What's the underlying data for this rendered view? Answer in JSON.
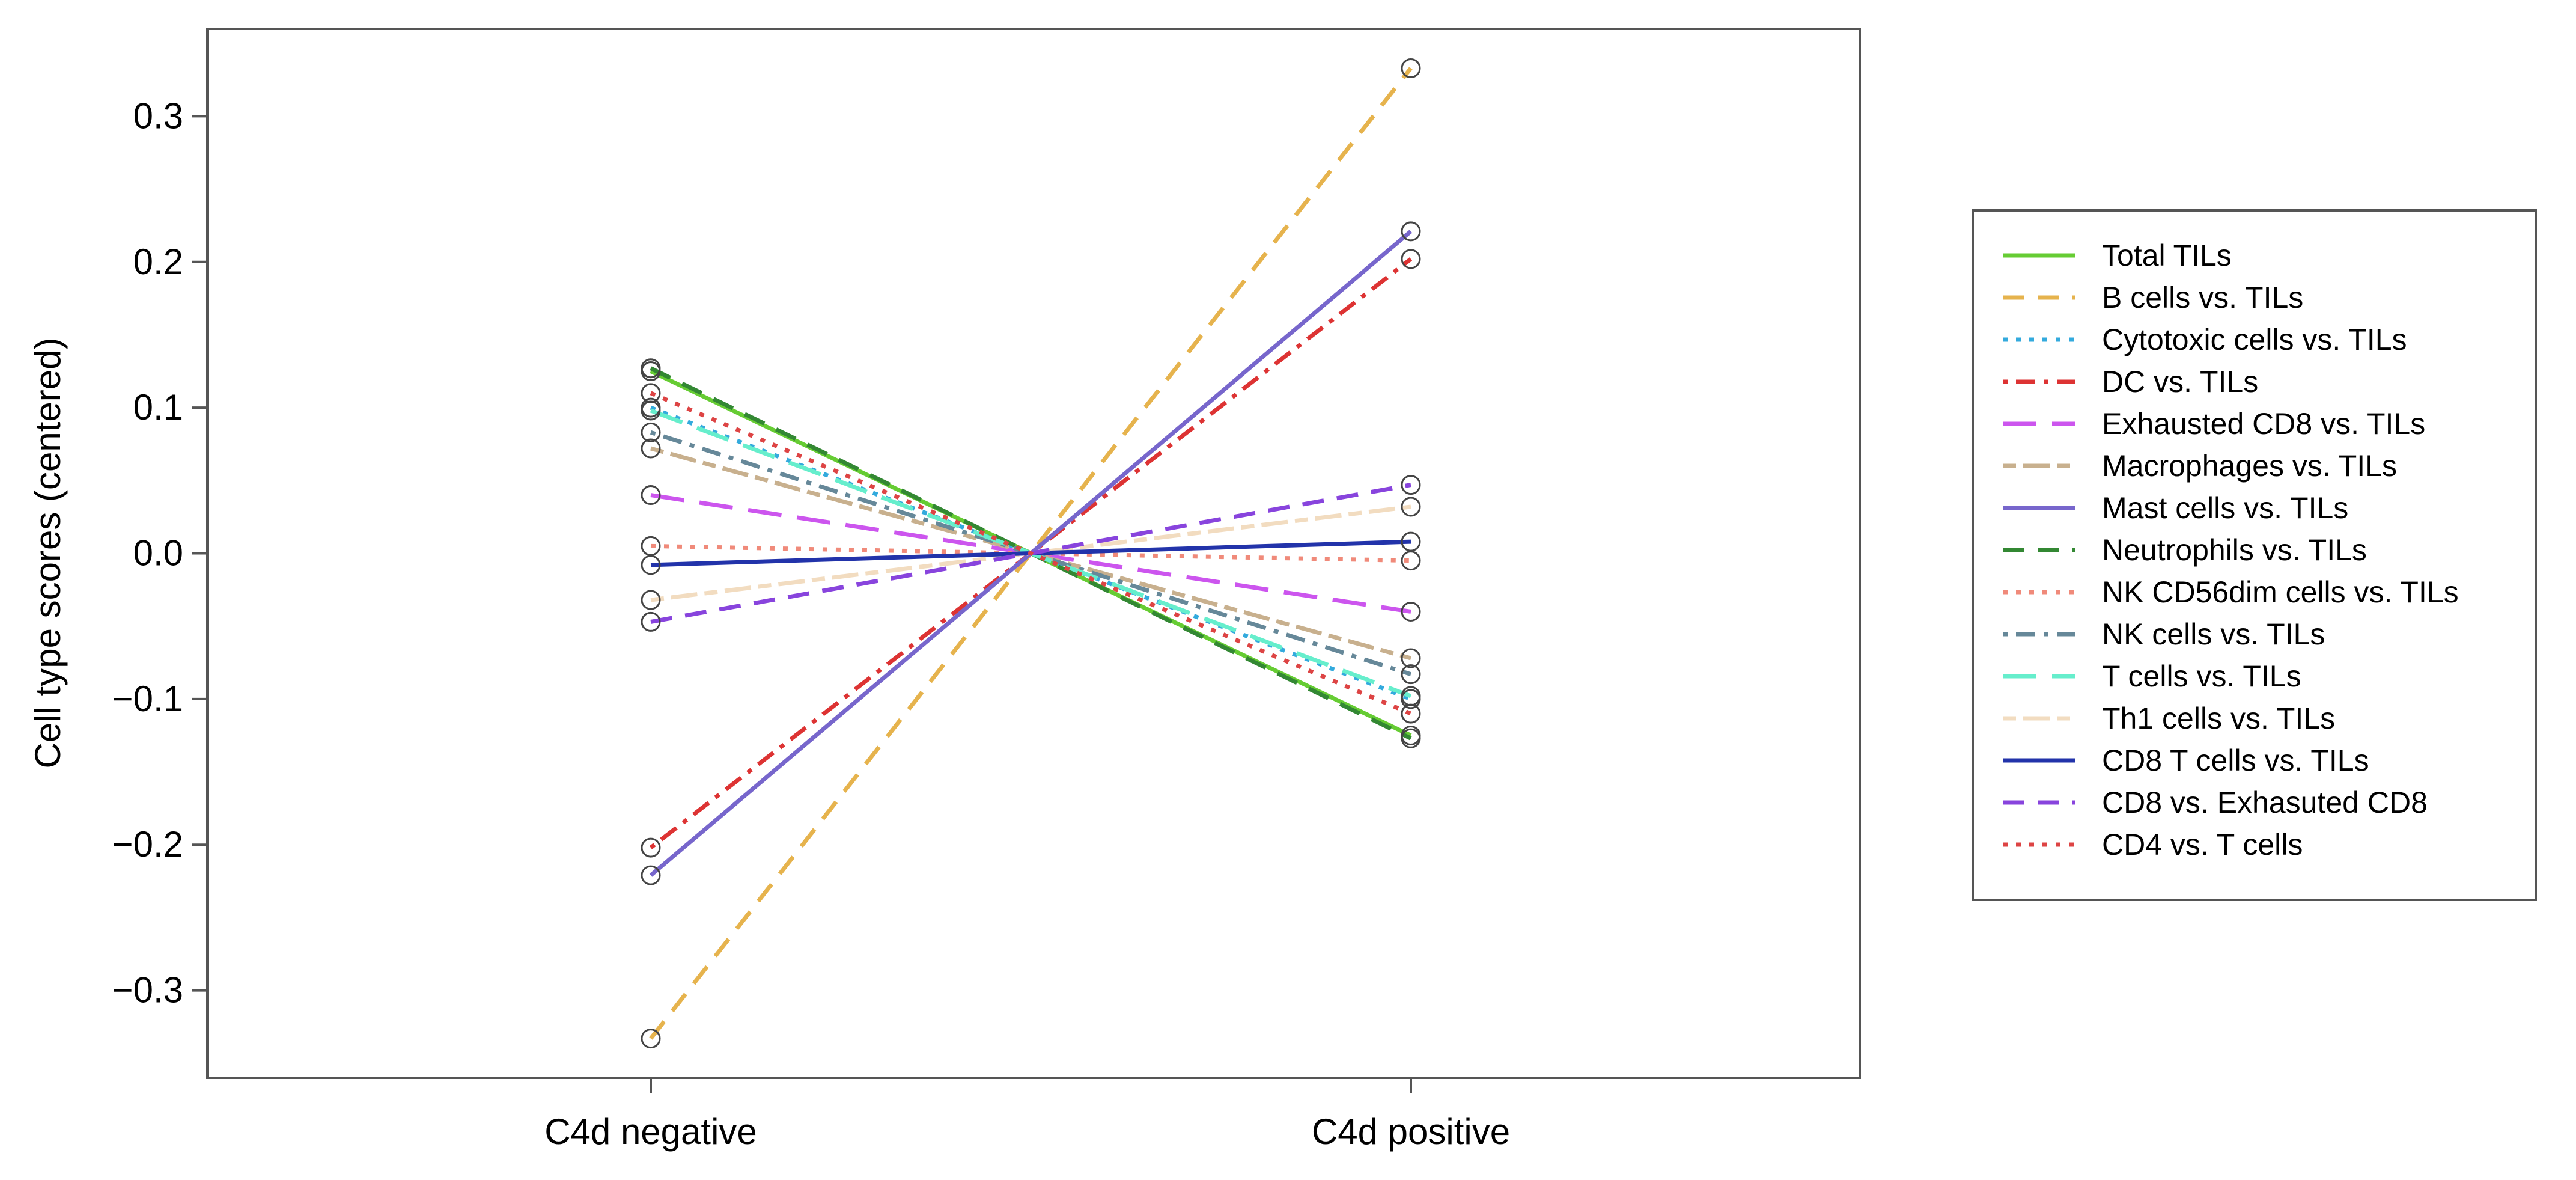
{
  "chart_data": {
    "type": "line",
    "title": "",
    "xlabel": "",
    "ylabel": "Cell type scores (centered)",
    "categories": [
      "C4d negative",
      "C4d positive"
    ],
    "ylim": [
      -0.36,
      0.36
    ],
    "yticks": [
      {
        "value": 0.3,
        "label": "0.3"
      },
      {
        "value": 0.2,
        "label": "0.2"
      },
      {
        "value": 0.1,
        "label": "0.1"
      },
      {
        "value": 0.0,
        "label": "0.0"
      },
      {
        "value": -0.1,
        "label": "−0.1"
      },
      {
        "value": -0.2,
        "label": "−0.2"
      },
      {
        "value": -0.3,
        "label": "−0.3"
      }
    ],
    "legend_position": "right",
    "series": [
      {
        "name": "Total TILs",
        "values": [
          0.125,
          -0.125
        ],
        "color": "#66cc33",
        "dash": "solid"
      },
      {
        "name": "B cells vs. TILs",
        "values": [
          -0.333,
          0.333
        ],
        "color": "#e6b34d",
        "dash": "dashed"
      },
      {
        "name": "Cytotoxic cells vs. TILs",
        "values": [
          0.1,
          -0.1
        ],
        "color": "#33aadd",
        "dash": "dotted"
      },
      {
        "name": "DC vs. TILs",
        "values": [
          -0.202,
          0.202
        ],
        "color": "#dd3333",
        "dash": "dotdash"
      },
      {
        "name": "Exhausted CD8 vs. TILs",
        "values": [
          0.04,
          -0.04
        ],
        "color": "#cc55ee",
        "dash": "longdash"
      },
      {
        "name": "Macrophages vs. TILs",
        "values": [
          0.072,
          -0.072
        ],
        "color": "#c8b08e",
        "dash": "twodash"
      },
      {
        "name": "Mast cells vs. TILs",
        "values": [
          -0.221,
          0.221
        ],
        "color": "#7766cc",
        "dash": "solid"
      },
      {
        "name": "Neutrophils vs. TILs",
        "values": [
          0.127,
          -0.127
        ],
        "color": "#338833",
        "dash": "dashed"
      },
      {
        "name": "NK CD56dim cells vs. TILs",
        "values": [
          0.005,
          -0.005
        ],
        "color": "#f08a7a",
        "dash": "dotted"
      },
      {
        "name": "NK cells vs. TILs",
        "values": [
          0.083,
          -0.083
        ],
        "color": "#668899",
        "dash": "dotdash"
      },
      {
        "name": "T cells vs. TILs",
        "values": [
          0.098,
          -0.098
        ],
        "color": "#66eecc",
        "dash": "longdash"
      },
      {
        "name": "Th1 cells vs. TILs",
        "values": [
          -0.032,
          0.032
        ],
        "color": "#f2dcc0",
        "dash": "twodash"
      },
      {
        "name": "CD8 T cells vs. TILs",
        "values": [
          -0.008,
          0.008
        ],
        "color": "#2233aa",
        "dash": "solid"
      },
      {
        "name": "CD8 vs. Exhasuted CD8",
        "values": [
          -0.047,
          0.047
        ],
        "color": "#8844dd",
        "dash": "dashed"
      },
      {
        "name": "CD4 vs. T cells",
        "values": [
          0.11,
          -0.11
        ],
        "color": "#dd4444",
        "dash": "dotted"
      }
    ]
  }
}
